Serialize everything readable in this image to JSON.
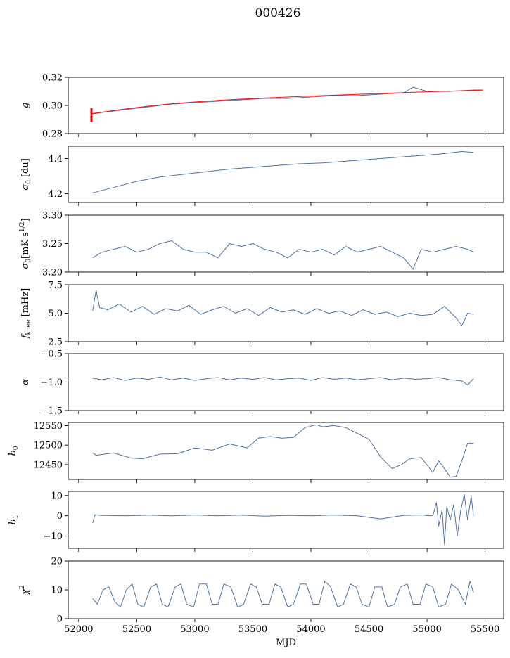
{
  "figure_title": "000426",
  "colors": {
    "series": "#4c72a0",
    "fit": "#ff0000"
  },
  "chart_data": [
    {
      "type": "line",
      "id": "g",
      "ylabel": "g",
      "ylabel_sym": "g",
      "ylabel_unit": "",
      "ylim": [
        0.28,
        0.32
      ],
      "yticks": [
        0.28,
        0.3,
        0.32
      ],
      "ytick_labels": [
        "0.28",
        "0.30",
        "0.32"
      ],
      "series": [
        {
          "name": "g",
          "x": [
            52120,
            52200,
            52400,
            52600,
            52800,
            53000,
            53200,
            53400,
            53600,
            53800,
            54000,
            54200,
            54400,
            54600,
            54800,
            54880,
            55000,
            55200,
            55400,
            55480
          ],
          "values": [
            0.294,
            0.295,
            0.297,
            0.299,
            0.301,
            0.302,
            0.303,
            0.304,
            0.305,
            0.305,
            0.306,
            0.307,
            0.307,
            0.308,
            0.309,
            0.313,
            0.31,
            0.31,
            0.311,
            0.311
          ]
        },
        {
          "name": "fit",
          "x": [
            52110,
            52200,
            52400,
            52600,
            52800,
            53000,
            53200,
            53400,
            53600,
            53800,
            54000,
            54200,
            54400,
            54600,
            54800,
            55000,
            55200,
            55400,
            55480
          ],
          "values": [
            0.2942,
            0.2952,
            0.2975,
            0.2995,
            0.3012,
            0.3025,
            0.3036,
            0.3045,
            0.3053,
            0.306,
            0.3067,
            0.3073,
            0.3079,
            0.3085,
            0.3091,
            0.3097,
            0.3102,
            0.3107,
            0.3109
          ]
        }
      ]
    },
    {
      "type": "line",
      "id": "sigma0_du",
      "ylabel": "σ0 [du]",
      "ylabel_sym": "σ",
      "ylabel_sub": "0",
      "ylabel_unit": " [du]",
      "ylim": [
        4.15,
        4.47
      ],
      "yticks": [
        4.2,
        4.4
      ],
      "ytick_labels": [
        "4.2",
        "4.4"
      ],
      "series": [
        {
          "name": "sigma0",
          "x": [
            52120,
            52300,
            52500,
            52700,
            52900,
            53100,
            53300,
            53500,
            53700,
            53900,
            54100,
            54300,
            54500,
            54700,
            54900,
            55100,
            55300,
            55400
          ],
          "values": [
            4.205,
            4.235,
            4.27,
            4.295,
            4.31,
            4.325,
            4.34,
            4.35,
            4.36,
            4.37,
            4.375,
            4.385,
            4.395,
            4.405,
            4.415,
            4.425,
            4.44,
            4.435
          ]
        }
      ]
    },
    {
      "type": "line",
      "id": "sigma0_mK",
      "ylabel": "σ0[mK s^1/2]",
      "ylabel_sym": "σ",
      "ylabel_sub": "0",
      "ylabel_unit": "[mK s",
      "ylabel_sup": "1/2",
      "ylabel_close": "]",
      "ylim": [
        3.2,
        3.3
      ],
      "yticks": [
        3.2,
        3.25,
        3.3
      ],
      "ytick_labels": [
        "3.20",
        "3.25",
        "3.30"
      ],
      "series": [
        {
          "name": "sigma0_mK",
          "x": [
            52120,
            52200,
            52300,
            52400,
            52500,
            52600,
            52700,
            52800,
            52900,
            53000,
            53100,
            53200,
            53300,
            53400,
            53500,
            53600,
            53700,
            53800,
            53900,
            54000,
            54100,
            54200,
            54300,
            54400,
            54500,
            54600,
            54700,
            54800,
            54880,
            54950,
            55050,
            55150,
            55250,
            55350,
            55400
          ],
          "values": [
            3.225,
            3.235,
            3.24,
            3.245,
            3.235,
            3.24,
            3.25,
            3.255,
            3.24,
            3.235,
            3.235,
            3.225,
            3.25,
            3.245,
            3.25,
            3.24,
            3.235,
            3.225,
            3.24,
            3.235,
            3.24,
            3.23,
            3.245,
            3.235,
            3.24,
            3.245,
            3.235,
            3.225,
            3.205,
            3.24,
            3.235,
            3.24,
            3.245,
            3.24,
            3.235
          ]
        }
      ]
    },
    {
      "type": "line",
      "id": "fknee",
      "ylabel": "fknee [mHz]",
      "ylabel_sym": "f",
      "ylabel_sub": "knee",
      "ylabel_unit": " [mHz]",
      "ylim": [
        2.5,
        7.5
      ],
      "yticks": [
        2.5,
        5.0,
        7.5
      ],
      "ytick_labels": [
        "2.5",
        "5.0",
        "7.5"
      ],
      "series": [
        {
          "name": "fknee",
          "x": [
            52120,
            52150,
            52180,
            52250,
            52350,
            52450,
            52550,
            52650,
            52750,
            52850,
            52950,
            53050,
            53150,
            53250,
            53350,
            53450,
            53550,
            53650,
            53750,
            53850,
            53950,
            54050,
            54150,
            54250,
            54350,
            54450,
            54550,
            54650,
            54750,
            54850,
            54950,
            55050,
            55150,
            55250,
            55300,
            55350,
            55400
          ],
          "values": [
            5.2,
            7.0,
            5.5,
            5.3,
            5.8,
            5.1,
            5.6,
            4.9,
            5.4,
            5.2,
            5.7,
            4.9,
            5.3,
            5.6,
            5.0,
            5.4,
            4.8,
            5.5,
            5.1,
            5.3,
            4.9,
            5.4,
            5.0,
            5.2,
            4.8,
            5.3,
            4.9,
            5.1,
            4.7,
            5.0,
            4.8,
            4.9,
            5.6,
            4.6,
            3.9,
            5.0,
            4.9
          ]
        }
      ]
    },
    {
      "type": "line",
      "id": "alpha",
      "ylabel": "α",
      "ylabel_sym": "α",
      "ylabel_unit": "",
      "ylim": [
        -1.5,
        -0.5
      ],
      "yticks": [
        -1.5,
        -1.0,
        -0.5
      ],
      "ytick_labels": [
        "−1.5",
        "−1.0",
        "−0.5"
      ],
      "series": [
        {
          "name": "alpha",
          "x": [
            52120,
            52200,
            52300,
            52400,
            52500,
            52600,
            52700,
            52800,
            52900,
            53000,
            53100,
            53200,
            53300,
            53400,
            53500,
            53600,
            53700,
            53800,
            53900,
            54000,
            54100,
            54200,
            54300,
            54400,
            54500,
            54600,
            54700,
            54800,
            54900,
            55000,
            55100,
            55200,
            55300,
            55350,
            55400
          ],
          "values": [
            -0.93,
            -0.96,
            -0.92,
            -0.97,
            -0.93,
            -0.95,
            -0.91,
            -0.96,
            -0.93,
            -0.97,
            -0.94,
            -0.92,
            -0.96,
            -0.93,
            -0.95,
            -0.92,
            -0.96,
            -0.94,
            -0.93,
            -0.97,
            -0.92,
            -0.95,
            -0.93,
            -0.96,
            -0.94,
            -0.92,
            -0.96,
            -0.93,
            -0.95,
            -0.94,
            -0.92,
            -0.96,
            -0.98,
            -1.05,
            -0.94
          ]
        }
      ]
    },
    {
      "type": "line",
      "id": "b0",
      "ylabel": "b0",
      "ylabel_sym": "b",
      "ylabel_sub": "0",
      "ylabel_unit": "",
      "ylim": [
        12412,
        12558
      ],
      "yticks": [
        12450,
        12500,
        12550
      ],
      "ytick_labels": [
        "12450",
        "12500",
        "12550"
      ],
      "series": [
        {
          "name": "b0",
          "x": [
            52120,
            52150,
            52300,
            52450,
            52550,
            52700,
            52850,
            53000,
            53150,
            53300,
            53450,
            53550,
            53650,
            53750,
            53850,
            53950,
            54050,
            54100,
            54200,
            54300,
            54400,
            54500,
            54600,
            54700,
            54780,
            54850,
            54950,
            55050,
            55100,
            55150,
            55200,
            55250,
            55300,
            55350,
            55400
          ],
          "values": [
            12480,
            12474,
            12480,
            12467,
            12465,
            12477,
            12478,
            12493,
            12487,
            12503,
            12493,
            12518,
            12522,
            12518,
            12520,
            12545,
            12552,
            12547,
            12550,
            12545,
            12530,
            12515,
            12470,
            12440,
            12450,
            12465,
            12468,
            12430,
            12460,
            12440,
            12418,
            12420,
            12460,
            12505,
            12505
          ]
        }
      ]
    },
    {
      "type": "line",
      "id": "b1",
      "ylabel": "b1",
      "ylabel_sym": "b",
      "ylabel_sub": "1",
      "ylabel_unit": "",
      "ylim": [
        -16,
        12
      ],
      "yticks": [
        -10,
        0,
        10
      ],
      "ytick_labels": [
        "−10",
        "0",
        "10"
      ],
      "series": [
        {
          "name": "b1",
          "x": [
            52120,
            52140,
            52200,
            52400,
            52600,
            52800,
            53000,
            53200,
            53400,
            53600,
            53800,
            54000,
            54200,
            54400,
            54600,
            54800,
            54950,
            55050,
            55080,
            55100,
            55130,
            55150,
            55170,
            55200,
            55230,
            55260,
            55290,
            55320,
            55350,
            55380,
            55400
          ],
          "values": [
            -3.5,
            0.5,
            0.2,
            0.0,
            0.3,
            0.0,
            0.4,
            0.0,
            0.3,
            -0.2,
            0.2,
            0.0,
            0.4,
            0.0,
            -1.5,
            0.2,
            0.4,
            0.0,
            6.5,
            -5.0,
            3.0,
            -14.0,
            4.5,
            -2.0,
            5.5,
            -10.0,
            2.5,
            10.5,
            -2.0,
            9.5,
            0.0
          ]
        }
      ]
    },
    {
      "type": "line",
      "id": "chi2",
      "ylabel": "χ2",
      "ylabel_sym": "χ",
      "ylabel_sup": "2",
      "ylabel_unit": "",
      "ylim": [
        0,
        20
      ],
      "yticks": [
        0,
        10,
        20
      ],
      "ytick_labels": [
        "0",
        "10",
        "20"
      ],
      "xlabel": "MJD",
      "xticks": [
        52000,
        52500,
        53000,
        53500,
        54000,
        54500,
        55000,
        55500
      ],
      "xtick_labels": [
        "52000",
        "52500",
        "53000",
        "53500",
        "54000",
        "54500",
        "55000",
        "55500"
      ],
      "series": [
        {
          "name": "chi2",
          "x": [
            52120,
            52160,
            52210,
            52260,
            52310,
            52360,
            52410,
            52460,
            52510,
            52560,
            52620,
            52670,
            52720,
            52770,
            52830,
            52880,
            52930,
            52990,
            53040,
            53100,
            53150,
            53200,
            53250,
            53310,
            53370,
            53420,
            53480,
            53530,
            53580,
            53640,
            53690,
            53740,
            53800,
            53850,
            53910,
            53960,
            54020,
            54070,
            54120,
            54170,
            54230,
            54280,
            54340,
            54390,
            54440,
            54500,
            54550,
            54610,
            54660,
            54720,
            54770,
            54830,
            54880,
            54940,
            54990,
            55050,
            55100,
            55160,
            55210,
            55270,
            55330,
            55370,
            55400
          ],
          "values": [
            7,
            5,
            10,
            11,
            6,
            4,
            10,
            12,
            5,
            4,
            11,
            12,
            5,
            4,
            11,
            12,
            5,
            4,
            12,
            12,
            5,
            5,
            12,
            11,
            4,
            5,
            12,
            11,
            5,
            5,
            12,
            11,
            4,
            5,
            12,
            12,
            5,
            5,
            13,
            11,
            4,
            5,
            12,
            11,
            5,
            4,
            11,
            11,
            4,
            5,
            11,
            12,
            5,
            5,
            12,
            11,
            4,
            5,
            12,
            10,
            5,
            13,
            9
          ]
        }
      ]
    }
  ]
}
